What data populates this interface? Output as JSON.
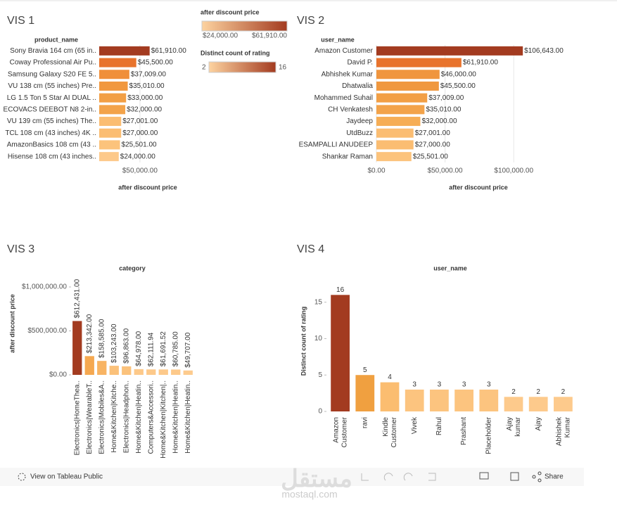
{
  "chart_data": [
    {
      "type": "bar",
      "orientation": "horizontal",
      "title": "VIS 1",
      "axis_header": "product_name",
      "axis_label": "after discount price",
      "categories": [
        "Sony Bravia 164 cm (65 in..",
        "Coway Professional Air Pu..",
        "Samsung Galaxy S20 FE 5..",
        "VU 138 cm (55 inches) Pre..",
        "LG 1.5 Ton 5 Star AI DUAL ..",
        "ECOVACS DEEBOT N8 2-in..",
        "VU 139 cm (55 inches) The..",
        "TCL 108 cm (43 inches) 4K ..",
        "AmazonBasics 108 cm (43 ..",
        "Hisense 108 cm (43 inches.."
      ],
      "values": [
        61910,
        45500,
        37009,
        35010,
        33000,
        32000,
        27001,
        27000,
        25501,
        24000
      ],
      "value_labels": [
        "$61,910.00",
        "$45,500.00",
        "$37,009.00",
        "$35,010.00",
        "$33,000.00",
        "$32,000.00",
        "$27,001.00",
        "$27,000.00",
        "$25,501.00",
        "$24,000.00"
      ],
      "colors": [
        "#a33b20",
        "#e8732c",
        "#f08f3a",
        "#f1983f",
        "#f29f45",
        "#f3a34a",
        "#fbbd72",
        "#fbbd72",
        "#fcc37c",
        "#fdc98a"
      ],
      "xlim": [
        0,
        120000
      ],
      "xticks": [
        {
          "value": 50000,
          "label": "$50,000.00"
        }
      ]
    },
    {
      "type": "bar",
      "orientation": "horizontal",
      "title": "VIS 2",
      "axis_header": "user_name",
      "axis_label": "after discount price",
      "categories": [
        "Amazon Customer",
        "David P.",
        "Abhishek Kumar",
        "Dhatwalia",
        "Mohammed Suhail",
        "CH Venkatesh",
        "Jaydeep",
        "UtdBuzz",
        "ESAMPALLI ANUDEEP",
        "Shankar Raman"
      ],
      "values": [
        106643,
        61910,
        46000,
        45500,
        37009,
        35010,
        32000,
        27001,
        27000,
        25501
      ],
      "value_labels": [
        "$106,643.00",
        "$61,910.00",
        "$46,000.00",
        "$45,500.00",
        "$37,009.00",
        "$35,010.00",
        "$32,000.00",
        "$27,001.00",
        "$27,000.00",
        "$25,501.00"
      ],
      "colors": [
        "#a33b20",
        "#e8732c",
        "#f0953e",
        "#f0983f",
        "#f29f45",
        "#f3a34a",
        "#f6ad55",
        "#fbbd72",
        "#fbbd72",
        "#fcc37c"
      ],
      "xlim": [
        0,
        146000
      ],
      "xticks": [
        {
          "value": 0,
          "label": "$0.00"
        },
        {
          "value": 50000,
          "label": "$50,000.00"
        },
        {
          "value": 100000,
          "label": "$100,000.00"
        }
      ]
    },
    {
      "type": "bar",
      "orientation": "vertical",
      "title": "VIS 3",
      "axis_header": "category",
      "axis_label": "after discount price",
      "categories": [
        "Electronics|HomeThea..",
        "Electronics|WearableT..",
        "Electronics|Mobiles&A..",
        "Home&Kitchen|Kitche..",
        "Electronics|Headphon..",
        "Home&Kitchen|Heatin..",
        "Computers&Accessori..",
        "Home&Kitchen|Kitchen|..",
        "Home&Kitchen|Heatin..",
        "Home&Kitchen|Heatin.."
      ],
      "values": [
        612431,
        213342,
        158585,
        103243,
        96863,
        64978,
        62111.94,
        61691.52,
        60785,
        49707
      ],
      "value_labels": [
        "$612,431.00",
        "$213,342.00",
        "$158,585.00",
        "$103,243.00",
        "$96,863.00",
        "$64,978.00",
        "$62,111.94",
        "$61,691.52",
        "$60,785.00",
        "$49,707.00"
      ],
      "colors": [
        "#a33b20",
        "#f5a850",
        "#f8b463",
        "#fbc17a",
        "#fbc27c",
        "#fdc98a",
        "#fdc98a",
        "#fdc98a",
        "#fdc98a",
        "#fdcb8e"
      ],
      "ylim": [
        0,
        1080000
      ],
      "yticks": [
        {
          "value": 0,
          "label": "$0.00"
        },
        {
          "value": 500000,
          "label": "$500,000.00"
        },
        {
          "value": 1000000,
          "label": "$1,000,000.00"
        }
      ]
    },
    {
      "type": "bar",
      "orientation": "vertical",
      "title": "VIS 4",
      "axis_header": "user_name",
      "axis_label": "Distinct count of rating",
      "categories": [
        "Amazon Customer",
        "ravi",
        "Kindle Customer",
        "Vivek",
        "Rahul",
        "Prashant",
        "Placeholder",
        "Ajay kumar",
        "Ajay",
        "Abhishek Kumar"
      ],
      "values": [
        16,
        5,
        4,
        3,
        3,
        3,
        3,
        2,
        2,
        2
      ],
      "colors": [
        "#a33b20",
        "#f0a040",
        "#fbbd70",
        "#fcc47f",
        "#fcc47f",
        "#fcc47f",
        "#fcc47f",
        "#fdca8c",
        "#fdca8c",
        "#fdca8c"
      ],
      "ylim": [
        0,
        17
      ],
      "yticks": [
        0,
        5,
        10,
        15
      ]
    }
  ],
  "legends": [
    {
      "title": "after discount price",
      "range": [
        {
          "value": 24000,
          "label": "$24,000.00"
        },
        {
          "value": 61910,
          "label": "$61,910.00"
        }
      ],
      "colors": [
        "#fdd3a0",
        "#a33b20"
      ]
    },
    {
      "title": "Distinct count of rating",
      "range": [
        2,
        16
      ],
      "colors": [
        "#fdd3a0",
        "#a33b20"
      ]
    }
  ],
  "toolbar": {
    "link": "View on Tableau Public",
    "share": "Share"
  },
  "watermark": {
    "arabic": "مستقل",
    "latin": "mostaql.com"
  }
}
